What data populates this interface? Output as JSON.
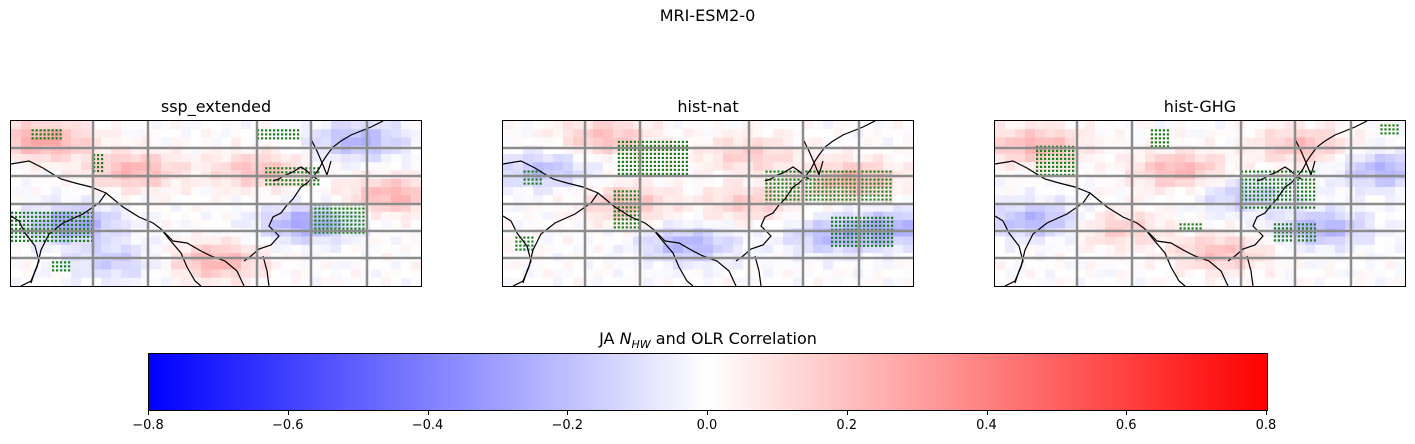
{
  "figure": {
    "title": "MRI-ESM2-0"
  },
  "panels": [
    {
      "title": "ssp_extended"
    },
    {
      "title": "hist-nat"
    },
    {
      "title": "hist-GHG"
    }
  ],
  "colorbar": {
    "label_prefix": "JA ",
    "label_symbol": "N",
    "label_subscript": "HW",
    "label_suffix": " and OLR Correlation",
    "ticks": [
      "−0.8",
      "−0.6",
      "−0.4",
      "−0.2",
      "0.0",
      "0.2",
      "0.4",
      "0.6",
      "0.8"
    ],
    "vmin": -0.8,
    "vmax": 0.8,
    "cmap": [
      "#0000ff",
      "#ffffff",
      "#ff0000"
    ]
  },
  "chart_data": {
    "type": "heatmap",
    "title": "MRI-ESM2-0",
    "panels": [
      "ssp_extended",
      "hist-nat",
      "hist-GHG"
    ],
    "colorbar_label": "JA N_HW and OLR Correlation",
    "value_range": [
      -0.8,
      0.8
    ],
    "grid": true,
    "coastlines": true,
    "stippling": "green dots mark significant correlations"
  }
}
